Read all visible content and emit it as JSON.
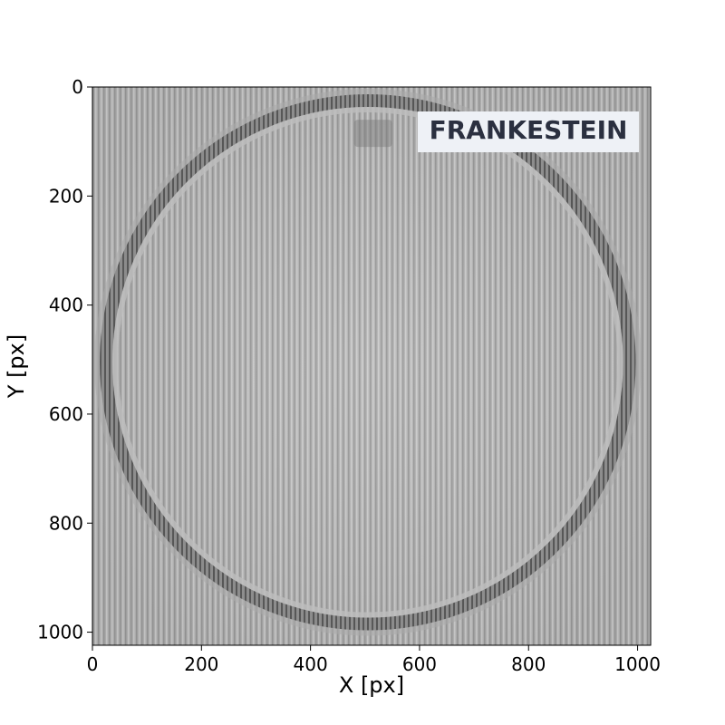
{
  "chart_data": {
    "type": "heatmap",
    "title": "",
    "xlabel": "X [px]",
    "ylabel": "Y [px]",
    "xlim": [
      0,
      1024
    ],
    "ylim": [
      1024,
      0
    ],
    "x_ticks": [
      0,
      200,
      400,
      600,
      800,
      1000
    ],
    "y_ticks": [
      0,
      200,
      400,
      600,
      800,
      1000
    ],
    "x_tick_labels": [
      "0",
      "200",
      "400",
      "600",
      "800",
      "1000"
    ],
    "y_tick_labels": [
      "0",
      "200",
      "400",
      "600",
      "800",
      "1000"
    ],
    "colormap": "gray",
    "grid": false,
    "legend": "none",
    "image_description_features": {
      "ring": {
        "center_x": 505,
        "center_y": 505,
        "radius": 480
      },
      "dark_patch": {
        "x0": 480,
        "x1": 550,
        "y0": 60,
        "y1": 110
      }
    },
    "annotation": {
      "text": "FRANKESTEIN",
      "placement": "top-right",
      "box_color": "#eef1f6",
      "text_color": "#2b3040"
    }
  },
  "colors": {
    "background": "#b5b5b5",
    "stripe_dark": "#8f8f8f",
    "stripe_light": "#cfcfcf",
    "ring_dark": "#5a5a5a"
  }
}
